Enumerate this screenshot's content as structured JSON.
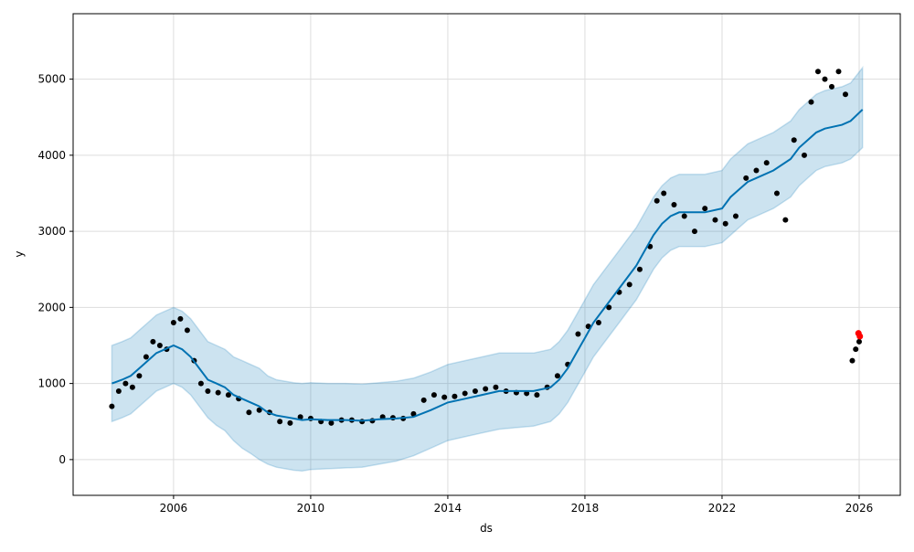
{
  "chart_data": {
    "type": "line",
    "title": "",
    "xlabel": "ds",
    "ylabel": "y",
    "xlim": [
      2003.07,
      2027.2
    ],
    "ylim": [
      -470,
      5860
    ],
    "grid": true,
    "x_ticks": [
      2006,
      2010,
      2014,
      2018,
      2022,
      2026
    ],
    "x_tick_labels": [
      "2006",
      "2010",
      "2014",
      "2018",
      "2022",
      "2026"
    ],
    "y_ticks": [
      0,
      1000,
      2000,
      3000,
      4000,
      5000
    ],
    "y_tick_labels": [
      "0",
      "1000",
      "2000",
      "3000",
      "4000",
      "5000"
    ],
    "colors": {
      "forecast": "#0072b2",
      "band": "#0072b2",
      "observed": "#000000",
      "highlight": "#ff0000"
    },
    "forecast": {
      "x": [
        2004.2,
        2004.5,
        2004.75,
        2005,
        2005.25,
        2005.5,
        2005.75,
        2006,
        2006.25,
        2006.5,
        2006.75,
        2007,
        2007.25,
        2007.5,
        2007.75,
        2008,
        2008.25,
        2008.5,
        2008.75,
        2009,
        2009.25,
        2009.5,
        2009.75,
        2010,
        2010.5,
        2011,
        2011.5,
        2012,
        2012.5,
        2013,
        2013.5,
        2014,
        2014.5,
        2015,
        2015.5,
        2016,
        2016.5,
        2017,
        2017.25,
        2017.5,
        2017.75,
        2018,
        2018.25,
        2018.5,
        2018.75,
        2019,
        2019.25,
        2019.5,
        2019.75,
        2020,
        2020.25,
        2020.5,
        2020.75,
        2021,
        2021.5,
        2022,
        2022.25,
        2022.5,
        2022.75,
        2023,
        2023.5,
        2024,
        2024.25,
        2024.5,
        2024.75,
        2025,
        2025.5,
        2025.75,
        2026.1
      ],
      "yhat": [
        1000,
        1050,
        1100,
        1200,
        1300,
        1400,
        1450,
        1500,
        1450,
        1350,
        1200,
        1050,
        1000,
        950,
        850,
        800,
        750,
        700,
        620,
        580,
        560,
        540,
        520,
        530,
        520,
        520,
        510,
        530,
        540,
        560,
        650,
        750,
        800,
        850,
        900,
        900,
        900,
        950,
        1050,
        1200,
        1400,
        1600,
        1800,
        1950,
        2100,
        2250,
        2400,
        2550,
        2750,
        2950,
        3100,
        3200,
        3250,
        3250,
        3250,
        3300,
        3450,
        3550,
        3650,
        3700,
        3800,
        3950,
        4100,
        4200,
        4300,
        4350,
        4400,
        4450,
        4600
      ],
      "yhat_lower": [
        500,
        550,
        600,
        700,
        800,
        900,
        950,
        1000,
        950,
        850,
        700,
        550,
        450,
        380,
        250,
        150,
        80,
        0,
        -60,
        -100,
        -120,
        -140,
        -150,
        -130,
        -120,
        -110,
        -100,
        -60,
        -20,
        50,
        150,
        250,
        300,
        350,
        400,
        420,
        440,
        500,
        600,
        750,
        950,
        1150,
        1350,
        1500,
        1650,
        1800,
        1950,
        2100,
        2300,
        2500,
        2650,
        2750,
        2800,
        2800,
        2800,
        2850,
        2950,
        3050,
        3150,
        3200,
        3300,
        3450,
        3600,
        3700,
        3800,
        3850,
        3900,
        3950,
        4100
      ],
      "yhat_upper": [
        1500,
        1550,
        1600,
        1700,
        1800,
        1900,
        1950,
        2000,
        1950,
        1850,
        1700,
        1550,
        1500,
        1450,
        1350,
        1300,
        1250,
        1200,
        1100,
        1050,
        1030,
        1010,
        1000,
        1010,
        1000,
        1000,
        990,
        1010,
        1030,
        1070,
        1150,
        1250,
        1300,
        1350,
        1400,
        1400,
        1400,
        1450,
        1550,
        1700,
        1900,
        2100,
        2300,
        2450,
        2600,
        2750,
        2900,
        3050,
        3250,
        3450,
        3600,
        3700,
        3750,
        3750,
        3750,
        3800,
        3950,
        4050,
        4150,
        4200,
        4300,
        4450,
        4600,
        4700,
        4800,
        4850,
        4900,
        4950,
        5150
      ]
    },
    "observed": {
      "x": [
        2004.2,
        2004.4,
        2004.6,
        2004.8,
        2005,
        2005.2,
        2005.4,
        2005.6,
        2005.8,
        2006,
        2006.2,
        2006.4,
        2006.6,
        2006.8,
        2007,
        2007.3,
        2007.6,
        2007.9,
        2008.2,
        2008.5,
        2008.8,
        2009.1,
        2009.4,
        2009.7,
        2010,
        2010.3,
        2010.6,
        2010.9,
        2011.2,
        2011.5,
        2011.8,
        2012.1,
        2012.4,
        2012.7,
        2013,
        2013.3,
        2013.6,
        2013.9,
        2014.2,
        2014.5,
        2014.8,
        2015.1,
        2015.4,
        2015.7,
        2016,
        2016.3,
        2016.6,
        2016.9,
        2017.2,
        2017.5,
        2017.8,
        2018.1,
        2018.4,
        2018.7,
        2019,
        2019.3,
        2019.6,
        2019.9,
        2020.1,
        2020.3,
        2020.6,
        2020.9,
        2021.2,
        2021.5,
        2021.8,
        2022.1,
        2022.4,
        2022.7,
        2023,
        2023.3,
        2023.6,
        2023.85,
        2024.1,
        2024.4,
        2024.6,
        2024.8,
        2025,
        2025.2,
        2025.4,
        2025.6,
        2025.8,
        2025.9,
        2026
      ],
      "y": [
        700,
        900,
        1000,
        950,
        1100,
        1350,
        1550,
        1500,
        1450,
        1800,
        1850,
        1700,
        1300,
        1000,
        900,
        880,
        850,
        800,
        620,
        650,
        620,
        500,
        480,
        560,
        540,
        500,
        480,
        520,
        520,
        500,
        510,
        560,
        550,
        540,
        600,
        780,
        850,
        820,
        830,
        870,
        900,
        930,
        950,
        900,
        880,
        870,
        850,
        950,
        1100,
        1250,
        1650,
        1750,
        1800,
        2000,
        2200,
        2300,
        2500,
        2800,
        3400,
        3500,
        3350,
        3200,
        3000,
        3300,
        3150,
        3100,
        3200,
        3700,
        3800,
        3900,
        3500,
        3150,
        4200,
        4000,
        4700,
        5100,
        5000,
        4900,
        5100,
        4800,
        1300,
        1450,
        1550
      ]
    },
    "highlighted": {
      "x": [
        2025.98,
        2026.02
      ],
      "y": [
        1660,
        1620
      ]
    }
  }
}
